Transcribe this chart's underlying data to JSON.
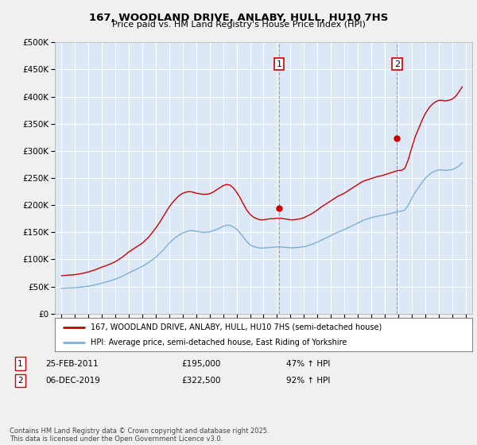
{
  "title": "167, WOODLAND DRIVE, ANLABY, HULL, HU10 7HS",
  "subtitle": "Price paid vs. HM Land Registry's House Price Index (HPI)",
  "fig_bg_color": "#f0f0f0",
  "plot_bg_color": "#dce8f5",
  "grid_color": "#ffffff",
  "red_line_color": "#cc0000",
  "blue_line_color": "#7ab0d4",
  "annotation_box_color": "#cc0000",
  "vline_color": "#cc0000",
  "ylim": [
    0,
    500000
  ],
  "yticks": [
    0,
    50000,
    100000,
    150000,
    200000,
    250000,
    300000,
    350000,
    400000,
    450000,
    500000
  ],
  "ytick_labels": [
    "£0",
    "£50K",
    "£100K",
    "£150K",
    "£200K",
    "£250K",
    "£300K",
    "£350K",
    "£400K",
    "£450K",
    "£500K"
  ],
  "xlim_start": 1994.5,
  "xlim_end": 2025.5,
  "xticks": [
    1995,
    1996,
    1997,
    1998,
    1999,
    2000,
    2001,
    2002,
    2003,
    2004,
    2005,
    2006,
    2007,
    2008,
    2009,
    2010,
    2011,
    2012,
    2013,
    2014,
    2015,
    2016,
    2017,
    2018,
    2019,
    2020,
    2021,
    2022,
    2023,
    2024,
    2025
  ],
  "annotation1": {
    "label": "1",
    "x": 2011.15,
    "price": 195000,
    "text_price": "£195,000",
    "date": "25-FEB-2011",
    "hpi_change": "47% ↑ HPI"
  },
  "annotation2": {
    "label": "2",
    "x": 2019.92,
    "price": 322500,
    "text_price": "£322,500",
    "date": "06-DEC-2019",
    "hpi_change": "92% ↑ HPI"
  },
  "legend_line1": "167, WOODLAND DRIVE, ANLABY, HULL, HU10 7HS (semi-detached house)",
  "legend_line2": "HPI: Average price, semi-detached house, East Riding of Yorkshire",
  "footer": "Contains HM Land Registry data © Crown copyright and database right 2025.\nThis data is licensed under the Open Government Licence v3.0.",
  "red_hpi_data_x": [
    1995.0,
    1995.25,
    1995.5,
    1995.75,
    1996.0,
    1996.25,
    1996.5,
    1996.75,
    1997.0,
    1997.25,
    1997.5,
    1997.75,
    1998.0,
    1998.25,
    1998.5,
    1998.75,
    1999.0,
    1999.25,
    1999.5,
    1999.75,
    2000.0,
    2000.25,
    2000.5,
    2000.75,
    2001.0,
    2001.25,
    2001.5,
    2001.75,
    2002.0,
    2002.25,
    2002.5,
    2002.75,
    2003.0,
    2003.25,
    2003.5,
    2003.75,
    2004.0,
    2004.25,
    2004.5,
    2004.75,
    2005.0,
    2005.25,
    2005.5,
    2005.75,
    2006.0,
    2006.25,
    2006.5,
    2006.75,
    2007.0,
    2007.25,
    2007.5,
    2007.75,
    2008.0,
    2008.25,
    2008.5,
    2008.75,
    2009.0,
    2009.25,
    2009.5,
    2009.75,
    2010.0,
    2010.25,
    2010.5,
    2010.75,
    2011.0,
    2011.25,
    2011.5,
    2011.75,
    2012.0,
    2012.25,
    2012.5,
    2012.75,
    2013.0,
    2013.25,
    2013.5,
    2013.75,
    2014.0,
    2014.25,
    2014.5,
    2014.75,
    2015.0,
    2015.25,
    2015.5,
    2015.75,
    2016.0,
    2016.25,
    2016.5,
    2016.75,
    2017.0,
    2017.25,
    2017.5,
    2017.75,
    2018.0,
    2018.25,
    2018.5,
    2018.75,
    2019.0,
    2019.25,
    2019.5,
    2019.75,
    2020.0,
    2020.25,
    2020.5,
    2020.75,
    2021.0,
    2021.25,
    2021.5,
    2021.75,
    2022.0,
    2022.25,
    2022.5,
    2022.75,
    2023.0,
    2023.25,
    2023.5,
    2023.75,
    2024.0,
    2024.25,
    2024.5,
    2024.75
  ],
  "red_hpi_data_y": [
    70000,
    70500,
    71000,
    71500,
    72000,
    73000,
    74000,
    75500,
    77000,
    79000,
    81000,
    83500,
    86000,
    88000,
    90500,
    93000,
    96000,
    100000,
    104000,
    109000,
    114000,
    118000,
    122000,
    126000,
    130000,
    136000,
    142000,
    150000,
    158000,
    167000,
    177000,
    187000,
    197000,
    205000,
    212000,
    218000,
    222000,
    224000,
    225000,
    224000,
    222000,
    221000,
    220000,
    220000,
    221000,
    224000,
    228000,
    232000,
    236000,
    238000,
    237000,
    232000,
    224000,
    214000,
    202000,
    191000,
    183000,
    178000,
    175000,
    173000,
    173000,
    174000,
    175000,
    175000,
    176000,
    176000,
    175000,
    174000,
    173000,
    173000,
    174000,
    175000,
    177000,
    180000,
    183000,
    187000,
    191000,
    196000,
    200000,
    204000,
    208000,
    212000,
    216000,
    219000,
    222000,
    226000,
    230000,
    234000,
    238000,
    242000,
    245000,
    247000,
    249000,
    251000,
    253000,
    254000,
    256000,
    258000,
    260000,
    262000,
    264000,
    264000,
    268000,
    284000,
    305000,
    325000,
    340000,
    355000,
    368000,
    378000,
    385000,
    390000,
    393000,
    393000,
    392000,
    393000,
    395000,
    400000,
    408000,
    418000
  ],
  "blue_hpi_data_x": [
    1995.0,
    1995.25,
    1995.5,
    1995.75,
    1996.0,
    1996.25,
    1996.5,
    1996.75,
    1997.0,
    1997.25,
    1997.5,
    1997.75,
    1998.0,
    1998.25,
    1998.5,
    1998.75,
    1999.0,
    1999.25,
    1999.5,
    1999.75,
    2000.0,
    2000.25,
    2000.5,
    2000.75,
    2001.0,
    2001.25,
    2001.5,
    2001.75,
    2002.0,
    2002.25,
    2002.5,
    2002.75,
    2003.0,
    2003.25,
    2003.5,
    2003.75,
    2004.0,
    2004.25,
    2004.5,
    2004.75,
    2005.0,
    2005.25,
    2005.5,
    2005.75,
    2006.0,
    2006.25,
    2006.5,
    2006.75,
    2007.0,
    2007.25,
    2007.5,
    2007.75,
    2008.0,
    2008.25,
    2008.5,
    2008.75,
    2009.0,
    2009.25,
    2009.5,
    2009.75,
    2010.0,
    2010.25,
    2010.5,
    2010.75,
    2011.0,
    2011.25,
    2011.5,
    2011.75,
    2012.0,
    2012.25,
    2012.5,
    2012.75,
    2013.0,
    2013.25,
    2013.5,
    2013.75,
    2014.0,
    2014.25,
    2014.5,
    2014.75,
    2015.0,
    2015.25,
    2015.5,
    2015.75,
    2016.0,
    2016.25,
    2016.5,
    2016.75,
    2017.0,
    2017.25,
    2017.5,
    2017.75,
    2018.0,
    2018.25,
    2018.5,
    2018.75,
    2019.0,
    2019.25,
    2019.5,
    2019.75,
    2020.0,
    2020.25,
    2020.5,
    2020.75,
    2021.0,
    2021.25,
    2021.5,
    2021.75,
    2022.0,
    2022.25,
    2022.5,
    2022.75,
    2023.0,
    2023.25,
    2023.5,
    2023.75,
    2024.0,
    2024.25,
    2024.5,
    2024.75
  ],
  "blue_hpi_data_y": [
    47000,
    47200,
    47400,
    47700,
    48000,
    48500,
    49200,
    50000,
    50800,
    52000,
    53200,
    54800,
    56400,
    58000,
    59800,
    61700,
    63800,
    66200,
    69000,
    72000,
    75200,
    78200,
    81200,
    84200,
    87200,
    91000,
    95000,
    99500,
    104000,
    110000,
    116000,
    123000,
    130000,
    136000,
    141000,
    145000,
    149000,
    151000,
    153000,
    153000,
    152000,
    151000,
    150000,
    150000,
    151000,
    153000,
    155000,
    158000,
    161000,
    163000,
    163000,
    160000,
    156000,
    149000,
    141000,
    133000,
    127000,
    124000,
    122000,
    121000,
    121000,
    121500,
    122000,
    122500,
    123000,
    123000,
    122500,
    122000,
    121500,
    121500,
    122000,
    122500,
    123500,
    125000,
    127000,
    129500,
    132000,
    135000,
    138000,
    141000,
    144000,
    147000,
    150000,
    152500,
    155000,
    158000,
    161000,
    164000,
    167000,
    170000,
    173000,
    175000,
    177000,
    178500,
    180000,
    181000,
    182000,
    183500,
    185000,
    186500,
    188000,
    189000,
    191000,
    200000,
    212000,
    223000,
    232000,
    241000,
    249000,
    255000,
    260000,
    263000,
    265000,
    265000,
    264000,
    264500,
    265500,
    268000,
    272000,
    278000
  ]
}
